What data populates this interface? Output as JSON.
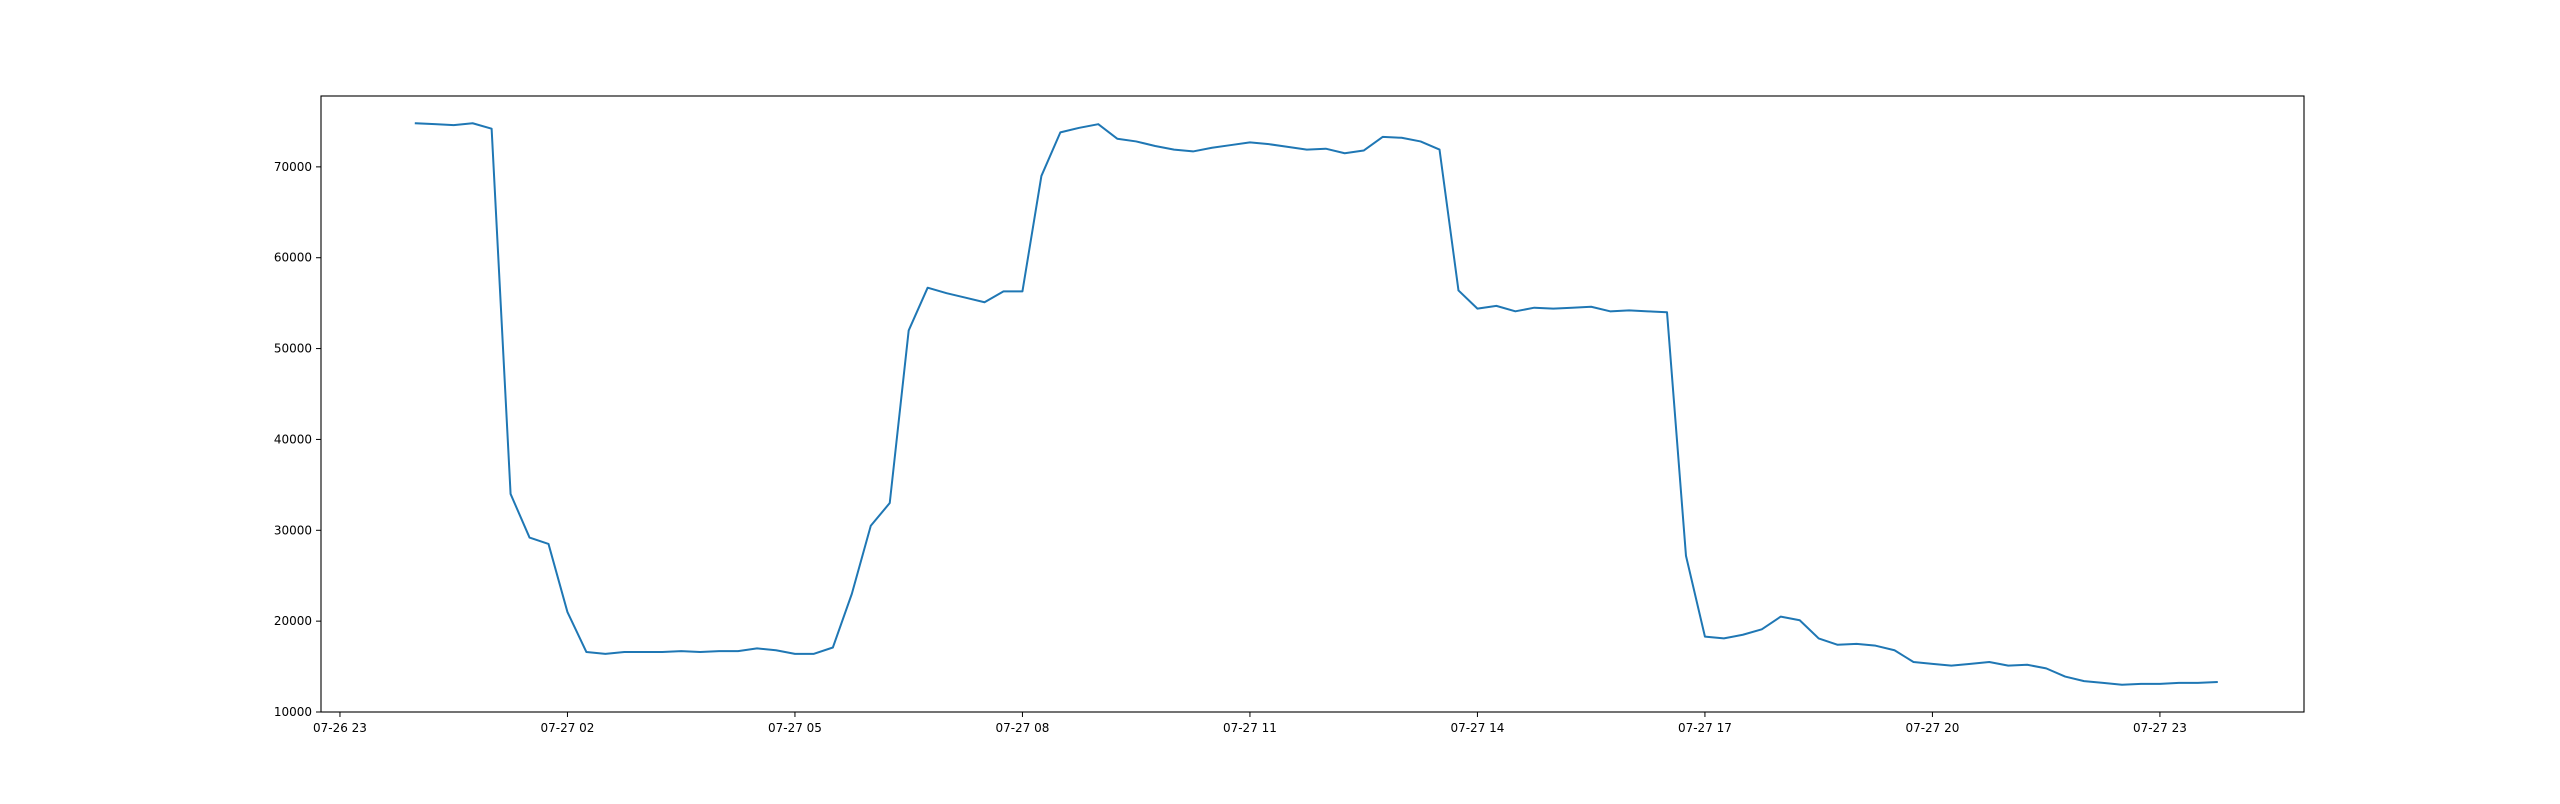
{
  "chart_data": {
    "type": "line",
    "title": "",
    "xlabel": "",
    "ylabel": "",
    "grid": false,
    "line_color": "#1f77b4",
    "x_tick_labels": [
      "07-26 23",
      "07-27 02",
      "07-27 05",
      "07-27 08",
      "07-27 11",
      "07-27 14",
      "07-27 17",
      "07-27 20",
      "07-27 23"
    ],
    "x_ticks_hours": [
      0,
      3,
      6,
      9,
      12,
      15,
      18,
      21,
      24
    ],
    "xlim_hours": [
      -0.25,
      25.9
    ],
    "y_ticks": [
      10000,
      20000,
      30000,
      40000,
      50000,
      60000,
      70000
    ],
    "ylim": [
      10000,
      77800
    ],
    "series": [
      {
        "x_hours": [
          1.0,
          1.25,
          1.5,
          1.75,
          2.0,
          2.25,
          2.5,
          2.75,
          3.0,
          3.25,
          3.5,
          3.75,
          4.0,
          4.25,
          4.5,
          4.75,
          5.0,
          5.25,
          5.5,
          5.75,
          6.0,
          6.25,
          6.5,
          6.75,
          7.0,
          7.25,
          7.5,
          7.75,
          8.0,
          8.25,
          8.5,
          8.75,
          9.0,
          9.25,
          9.5,
          9.75,
          10.0,
          10.25,
          10.5,
          10.75,
          11.0,
          11.25,
          11.5,
          11.75,
          12.0,
          12.25,
          12.5,
          12.75,
          13.0,
          13.25,
          13.5,
          13.75,
          14.0,
          14.25,
          14.5,
          14.75,
          15.0,
          15.25,
          15.5,
          15.75,
          16.0,
          16.25,
          16.5,
          16.75,
          17.0,
          17.25,
          17.5,
          17.75,
          18.0,
          18.25,
          18.5,
          18.75,
          19.0,
          19.25,
          19.5,
          19.75,
          20.0,
          20.25,
          20.5,
          20.75,
          21.0,
          21.25,
          21.5,
          21.75,
          22.0,
          22.25,
          22.5,
          22.75,
          23.0,
          23.25,
          23.5,
          23.75,
          24.0,
          24.25,
          24.5,
          24.75
        ],
        "values": [
          74800,
          74700,
          74600,
          74800,
          74200,
          34000,
          29200,
          28500,
          21000,
          16600,
          16400,
          16600,
          16600,
          16600,
          16700,
          16600,
          16700,
          16700,
          17000,
          16800,
          16400,
          16400,
          17100,
          23000,
          30500,
          33000,
          52000,
          56700,
          56100,
          55600,
          55100,
          56300,
          56300,
          69000,
          73800,
          74300,
          74700,
          73100,
          72800,
          72300,
          71900,
          71700,
          72100,
          72400,
          72700,
          72500,
          72200,
          71900,
          72000,
          71500,
          71800,
          73300,
          73200,
          72800,
          71900,
          56400,
          54400,
          54700,
          54100,
          54500,
          54400,
          54500,
          54600,
          54100,
          54200,
          54100,
          54000,
          27200,
          18300,
          18100,
          18500,
          19100,
          20500,
          20100,
          18100,
          17400,
          17500,
          17300,
          16800,
          15500,
          15300,
          15100,
          15300,
          15500,
          15100,
          15200,
          14800,
          13900,
          13400,
          13200,
          13000,
          13100,
          13100,
          13200,
          13200,
          13300
        ]
      }
    ]
  }
}
